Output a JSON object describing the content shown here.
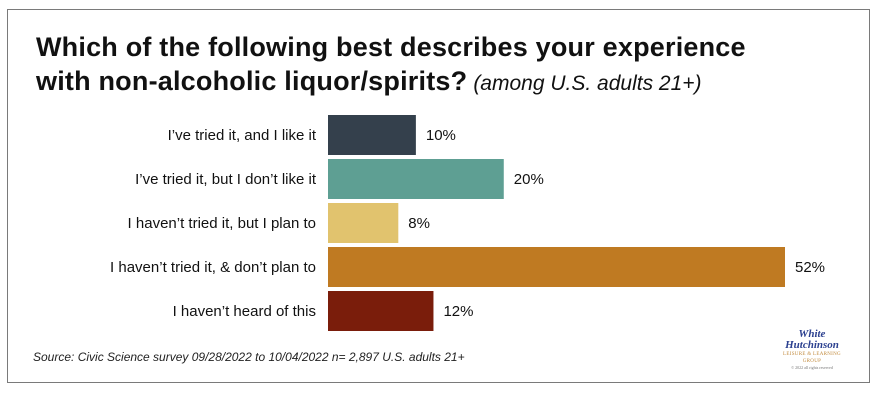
{
  "chart_data": {
    "type": "bar",
    "orientation": "horizontal",
    "title": "Which of the following best describes your experience with non-alcoholic liquor/spirits?",
    "subtitle": "(among U.S. adults 21+)",
    "categories": [
      "I’ve tried it, and I like it",
      "I’ve tried it, but I don’t like it",
      "I haven’t tried it, but I plan to",
      "I haven’t tried it, & don’t plan to",
      "I haven’t heard of this"
    ],
    "values": [
      10,
      20,
      8,
      52,
      12
    ],
    "value_labels": [
      "10%",
      "20%",
      "8%",
      "52%",
      "12%"
    ],
    "colors": [
      "#34404c",
      "#5e9f93",
      "#e1c36e",
      "#bf7a22",
      "#7a1d0b"
    ],
    "xlim": [
      0,
      52
    ],
    "grid": false,
    "legend": "none"
  },
  "title_line1": "Which of the following best describes your experience",
  "title_line2": "with non-alcoholic liquor/spirits?",
  "source": "Source: Civic Science survey 09/28/2022 to 10/04/2022 n= 2,897 U.S. adults 21+",
  "logo": {
    "line1": "White",
    "line2": "Hutchinson",
    "line3": "LEISURE & LEARNING GROUP",
    "line4": "© 2022 all rights reserved"
  }
}
